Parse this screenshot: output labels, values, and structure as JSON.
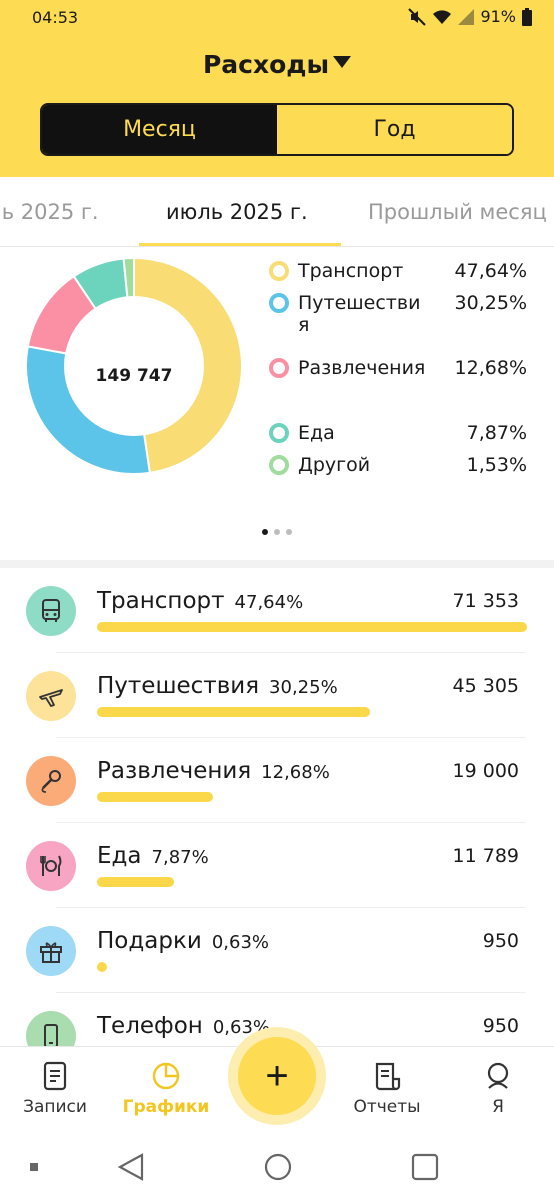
{
  "status": {
    "time": "04:53",
    "battery": "91%"
  },
  "header": {
    "title": "Расходы"
  },
  "mode_toggle": {
    "month_label": "Месяц",
    "year_label": "Год",
    "selected": "month"
  },
  "periods": {
    "prev": "нь 2025 г.",
    "current": "июль 2025 г.",
    "next": "Прошлый месяц"
  },
  "chart_data": {
    "type": "pie",
    "center_label": "149 747",
    "slices": [
      {
        "name": "Транспорт",
        "percent_label": "47,64%",
        "value": 47.64,
        "color": "#f9dc74"
      },
      {
        "name": "Путешествия",
        "percent_label": "30,25%",
        "value": 30.25,
        "color": "#5bc4e8"
      },
      {
        "name": "Развлечения",
        "percent_label": "12,68%",
        "value": 12.68,
        "color": "#fb8fa3"
      },
      {
        "name": "Еда",
        "percent_label": "7,87%",
        "value": 7.87,
        "color": "#6cd3bd"
      },
      {
        "name": "Другой",
        "percent_label": "1,53%",
        "value": 1.53,
        "color": "#9fdc9d"
      }
    ]
  },
  "legend": {
    "items": [
      {
        "name": "Транспорт",
        "pct": "47,64%",
        "color": "#f9dc74"
      },
      {
        "name": "Путешествия",
        "pct": "30,25%",
        "color": "#5bc4e8"
      },
      {
        "name": "Развлечения",
        "pct": "12,68%",
        "color": "#fb8fa3"
      },
      {
        "name": "Еда",
        "pct": "7,87%",
        "color": "#6cd3bd"
      },
      {
        "name": "Другой",
        "pct": "1,53%",
        "color": "#9fdc9d"
      }
    ]
  },
  "categories": [
    {
      "name": "Транспорт",
      "pct": "47,64%",
      "amount": "71 353",
      "share": 1.0,
      "icon": "bus-icon",
      "icon_bg": "#8fdcc6"
    },
    {
      "name": "Путешествия",
      "pct": "30,25%",
      "amount": "45 305",
      "share": 0.635,
      "icon": "plane-icon",
      "icon_bg": "#fde39a"
    },
    {
      "name": "Развлечения",
      "pct": "12,68%",
      "amount": "19 000",
      "share": 0.27,
      "icon": "microphone-icon",
      "icon_bg": "#fbab77"
    },
    {
      "name": "Еда",
      "pct": "7,87%",
      "amount": "11 789",
      "share": 0.18,
      "icon": "cutlery-icon",
      "icon_bg": "#f8a5c3"
    },
    {
      "name": "Подарки",
      "pct": "0,63%",
      "amount": "950",
      "share": 0.02,
      "icon": "gift-icon",
      "icon_bg": "#9ed9f5"
    },
    {
      "name": "Телефон",
      "pct": "0,63%",
      "amount": "950",
      "share": 0.02,
      "icon": "phone-icon",
      "icon_bg": "#a9dcae"
    }
  ],
  "bottom_nav": {
    "records": "Записи",
    "charts": "Графики",
    "add": "+",
    "reports": "Отчеты",
    "me": "Я"
  },
  "colors": {
    "accent": "#fddb52",
    "bar": "#fbd84a"
  }
}
